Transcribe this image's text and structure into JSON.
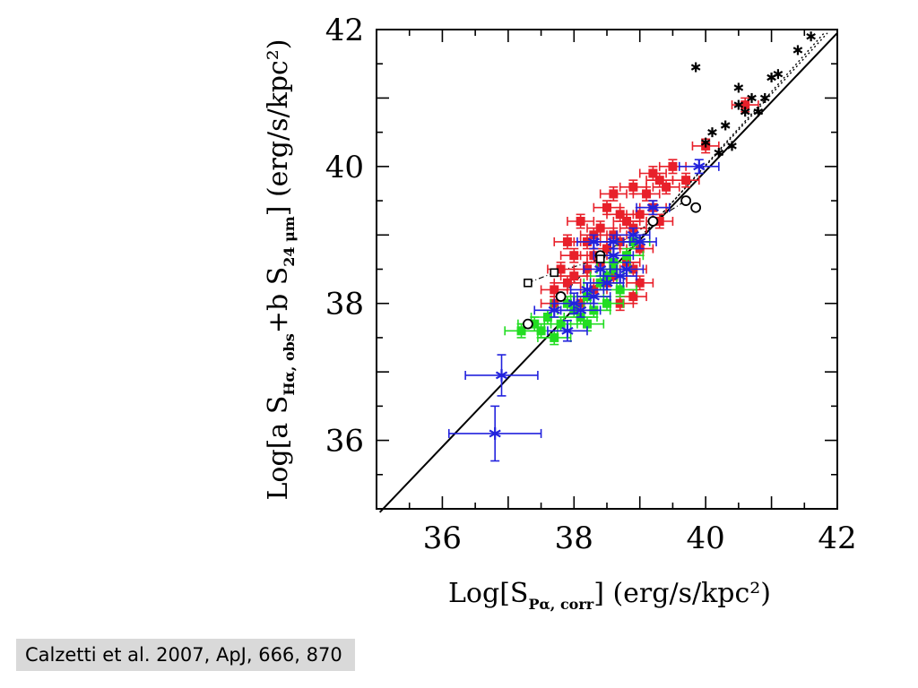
{
  "citation": "Calzetti et al. 2007, ApJ, 666, 870",
  "chart_data": {
    "type": "scatter",
    "title": "",
    "xlabel": {
      "prefix": "Log[S",
      "sub": "Pα, corr",
      "suffix": "] (erg/s/kpc²)"
    },
    "ylabel": {
      "p1": "Log[a S",
      "sub1": "Hα, obs",
      "p2": "+b S",
      "sub2": "24 μm",
      "p3": "] (erg/s/kpc²)"
    },
    "xlim": [
      35,
      42
    ],
    "ylim": [
      35,
      42
    ],
    "x_tick_labels": [
      "36",
      "38",
      "40",
      "42"
    ],
    "y_tick_labels": [
      "36",
      "38",
      "40",
      "42"
    ],
    "x_tick_values": [
      36,
      38,
      40,
      42
    ],
    "y_tick_values": [
      36,
      38,
      40,
      42
    ],
    "grid": false,
    "colors": {
      "red": "#e8202a",
      "green": "#22dd22",
      "blue": "#2222dd",
      "black": "#000000"
    },
    "fit_lines": [
      {
        "style": "solid",
        "x": [
          35.05,
          42.0
        ],
        "y": [
          34.95,
          41.95
        ]
      },
      {
        "style": "dotted",
        "x": [
          38.8,
          41.85
        ],
        "y": [
          38.75,
          41.95
        ]
      },
      {
        "style": "dotted",
        "x": [
          39.0,
          41.8
        ],
        "y": [
          38.95,
          41.95
        ]
      }
    ],
    "series": [
      {
        "color": "red",
        "marker": "square",
        "points": [
          [
            38.6,
            39.0
          ],
          [
            38.8,
            39.2
          ],
          [
            39.0,
            39.3
          ],
          [
            39.2,
            39.4
          ],
          [
            38.4,
            38.6
          ],
          [
            38.2,
            38.5
          ],
          [
            37.9,
            38.3
          ],
          [
            38.5,
            38.8
          ],
          [
            38.7,
            38.9
          ],
          [
            39.1,
            39.6
          ],
          [
            39.3,
            39.8
          ],
          [
            39.4,
            39.7
          ],
          [
            38.9,
            39.1
          ],
          [
            38.3,
            38.7
          ],
          [
            38.0,
            38.4
          ],
          [
            38.5,
            38.3
          ],
          [
            38.8,
            38.6
          ],
          [
            39.0,
            38.8
          ],
          [
            38.6,
            38.4
          ],
          [
            38.2,
            38.9
          ],
          [
            38.4,
            39.1
          ],
          [
            38.7,
            39.3
          ],
          [
            39.5,
            40.0
          ],
          [
            39.2,
            39.9
          ],
          [
            39.7,
            39.8
          ],
          [
            40.0,
            40.3
          ],
          [
            40.6,
            40.9
          ],
          [
            38.1,
            38.0
          ],
          [
            38.9,
            38.1
          ],
          [
            39.0,
            38.3
          ],
          [
            38.3,
            38.2
          ],
          [
            38.0,
            38.7
          ],
          [
            37.8,
            38.5
          ],
          [
            39.3,
            39.2
          ],
          [
            38.5,
            39.4
          ],
          [
            38.6,
            39.6
          ],
          [
            38.9,
            39.7
          ],
          [
            38.3,
            39.0
          ],
          [
            37.7,
            38.0
          ],
          [
            38.1,
            39.2
          ],
          [
            37.7,
            38.2
          ],
          [
            38.9,
            38.5
          ],
          [
            38.7,
            38.0
          ],
          [
            37.9,
            38.9
          ]
        ],
        "x_err": 0.2,
        "y_err": 0.1
      },
      {
        "color": "green",
        "marker": "square",
        "points": [
          [
            37.2,
            37.6
          ],
          [
            37.4,
            37.7
          ],
          [
            37.6,
            37.8
          ],
          [
            37.8,
            37.7
          ],
          [
            38.0,
            37.9
          ],
          [
            38.2,
            38.1
          ],
          [
            38.4,
            38.3
          ],
          [
            38.6,
            38.5
          ],
          [
            38.8,
            38.7
          ],
          [
            38.1,
            37.8
          ],
          [
            38.3,
            37.9
          ],
          [
            38.5,
            38.0
          ],
          [
            38.7,
            38.2
          ],
          [
            37.5,
            37.6
          ],
          [
            37.9,
            38.0
          ],
          [
            38.9,
            38.9
          ],
          [
            38.6,
            38.6
          ],
          [
            38.2,
            37.7
          ],
          [
            38.5,
            38.4
          ],
          [
            37.7,
            37.5
          ]
        ],
        "x_err": 0.25,
        "y_err": 0.1
      },
      {
        "color": "blue",
        "marker": "asterisk",
        "points": [
          [
            36.8,
            36.1
          ],
          [
            36.9,
            36.95
          ],
          [
            37.9,
            37.6
          ],
          [
            38.0,
            38.0
          ],
          [
            38.2,
            38.2
          ],
          [
            38.4,
            38.5
          ],
          [
            38.6,
            38.7
          ],
          [
            38.3,
            38.1
          ],
          [
            38.5,
            38.3
          ],
          [
            38.7,
            38.4
          ],
          [
            38.1,
            37.9
          ],
          [
            39.0,
            38.9
          ],
          [
            39.2,
            39.4
          ],
          [
            38.9,
            39.0
          ],
          [
            38.6,
            38.9
          ],
          [
            39.9,
            40.0
          ],
          [
            38.3,
            38.9
          ],
          [
            37.7,
            37.9
          ],
          [
            38.8,
            38.5
          ]
        ],
        "x_err_list": [
          0.7,
          0.55,
          0.3,
          0.3,
          0.25,
          0.25,
          0.3,
          0.25,
          0.25,
          0.25,
          0.3,
          0.25,
          0.25,
          0.25,
          0.25,
          0.3,
          0.25,
          0.3,
          0.25
        ],
        "y_err_list": [
          0.4,
          0.3,
          0.15,
          0.15,
          0.1,
          0.1,
          0.1,
          0.1,
          0.1,
          0.1,
          0.1,
          0.1,
          0.1,
          0.1,
          0.1,
          0.1,
          0.1,
          0.1,
          0.1
        ]
      },
      {
        "color": "black",
        "marker": "asterisk",
        "points": [
          [
            39.85,
            41.45
          ],
          [
            40.0,
            40.35
          ],
          [
            40.1,
            40.5
          ],
          [
            40.2,
            40.2
          ],
          [
            40.3,
            40.6
          ],
          [
            40.4,
            40.3
          ],
          [
            40.5,
            40.9
          ],
          [
            40.5,
            41.15
          ],
          [
            40.6,
            40.8
          ],
          [
            40.8,
            40.8
          ],
          [
            40.9,
            41.0
          ],
          [
            41.0,
            41.3
          ],
          [
            41.1,
            41.35
          ],
          [
            41.4,
            41.7
          ],
          [
            41.6,
            41.9
          ],
          [
            40.7,
            41.0
          ]
        ]
      },
      {
        "color": "black",
        "marker": "circle",
        "points": [
          [
            37.3,
            37.7
          ],
          [
            37.8,
            38.1
          ],
          [
            38.4,
            38.7
          ],
          [
            39.2,
            39.2
          ],
          [
            39.7,
            39.5
          ],
          [
            39.85,
            39.4
          ]
        ]
      },
      {
        "color": "black",
        "marker": "square-open",
        "points": [
          [
            37.3,
            38.3
          ],
          [
            37.7,
            38.45
          ],
          [
            38.4,
            38.65
          ]
        ]
      }
    ],
    "dashdot_paths": [
      {
        "x": [
          37.3,
          37.7,
          38.4
        ],
        "y": [
          38.3,
          38.45,
          38.65
        ]
      },
      {
        "x": [
          37.8,
          38.4,
          39.2,
          39.7
        ],
        "y": [
          38.1,
          38.7,
          39.2,
          39.5
        ]
      }
    ]
  }
}
